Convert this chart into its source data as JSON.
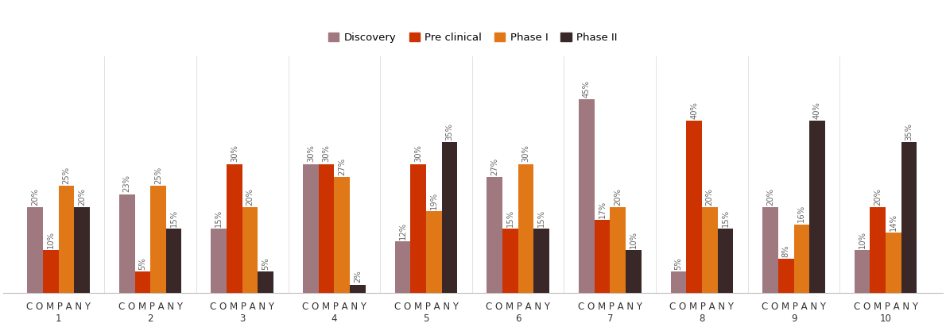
{
  "companies": [
    "C O M P A N Y\n1",
    "C O M P A N Y\n2",
    "C O M P A N Y\n3",
    "C O M P A N Y\n4",
    "C O M P A N Y\n5",
    "C O M P A N Y\n6",
    "C O M P A N Y\n7",
    "C O M P A N Y\n8",
    "C O M P A N Y\n9",
    "C O M P A N Y\n10"
  ],
  "categories": [
    "Discovery",
    "Pre clinical",
    "Phase I",
    "Phase II"
  ],
  "colors": [
    "#a07880",
    "#cc3300",
    "#e07818",
    "#3a2828"
  ],
  "values": {
    "Discovery": [
      20,
      23,
      15,
      30,
      12,
      27,
      45,
      5,
      20,
      10
    ],
    "Pre clinical": [
      10,
      5,
      30,
      30,
      30,
      15,
      17,
      40,
      8,
      20
    ],
    "Phase I": [
      25,
      25,
      20,
      27,
      19,
      30,
      20,
      20,
      16,
      14
    ],
    "Phase II": [
      20,
      15,
      5,
      2,
      35,
      15,
      10,
      15,
      40,
      35
    ]
  },
  "bar_width": 0.17,
  "ylim": [
    0,
    55
  ],
  "figsize": [
    11.9,
    4.12
  ],
  "dpi": 100,
  "label_fontsize": 7.2,
  "tick_fontsize": 8.5,
  "legend_fontsize": 9.5
}
